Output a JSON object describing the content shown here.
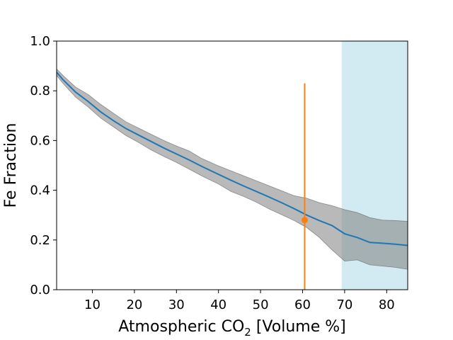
{
  "chart_data": {
    "type": "line",
    "xlabel_prefix": "Atmospheric CO",
    "xlabel_subscript": "2",
    "xlabel_suffix": " [Volume %]",
    "ylabel": "Fe Fraction",
    "xlim": [
      1.5,
      85
    ],
    "ylim": [
      0,
      1.0
    ],
    "xticks": [
      10,
      20,
      30,
      40,
      50,
      60,
      70,
      80
    ],
    "yticks": [
      0.0,
      0.2,
      0.4,
      0.6,
      0.8,
      1.0
    ],
    "xtick_labels": [
      "10",
      "20",
      "30",
      "40",
      "50",
      "60",
      "70",
      "80"
    ],
    "ytick_labels": [
      "0.0",
      "0.2",
      "0.4",
      "0.6",
      "0.8",
      "1.0"
    ],
    "grid": false,
    "colors": {
      "line": "#1f77b4",
      "band": "#808080",
      "marker": "#ff7f0e",
      "region": "#add8e6"
    },
    "shaded_region": {
      "x_start": 69.3,
      "x_end": 85
    },
    "series": [
      {
        "x": [
          1.5,
          3,
          6,
          9,
          12,
          15,
          18,
          21,
          24,
          27,
          30,
          33,
          36,
          40,
          43,
          46,
          49,
          52,
          55,
          58,
          61,
          64,
          67,
          70,
          73,
          76,
          79,
          82,
          85
        ],
        "y": [
          0.875,
          0.845,
          0.795,
          0.757,
          0.715,
          0.68,
          0.648,
          0.622,
          0.596,
          0.57,
          0.546,
          0.522,
          0.496,
          0.464,
          0.44,
          0.417,
          0.395,
          0.373,
          0.35,
          0.326,
          0.3,
          0.278,
          0.258,
          0.225,
          0.21,
          0.19,
          0.187,
          0.183,
          0.178
        ],
        "lower": [
          0.862,
          0.83,
          0.775,
          0.735,
          0.69,
          0.655,
          0.62,
          0.592,
          0.562,
          0.536,
          0.512,
          0.485,
          0.458,
          0.425,
          0.395,
          0.375,
          0.352,
          0.325,
          0.302,
          0.278,
          0.25,
          0.21,
          0.16,
          0.115,
          0.12,
          0.1,
          0.095,
          0.09,
          0.082
        ],
        "upper": [
          0.888,
          0.862,
          0.815,
          0.785,
          0.745,
          0.71,
          0.675,
          0.65,
          0.625,
          0.6,
          0.578,
          0.558,
          0.528,
          0.498,
          0.478,
          0.458,
          0.438,
          0.418,
          0.398,
          0.378,
          0.368,
          0.35,
          0.338,
          0.322,
          0.31,
          0.29,
          0.28,
          0.278,
          0.275
        ]
      }
    ],
    "point": {
      "x": 60.5,
      "y": 0.28,
      "err_low": 0.0,
      "err_high": 0.83
    }
  }
}
